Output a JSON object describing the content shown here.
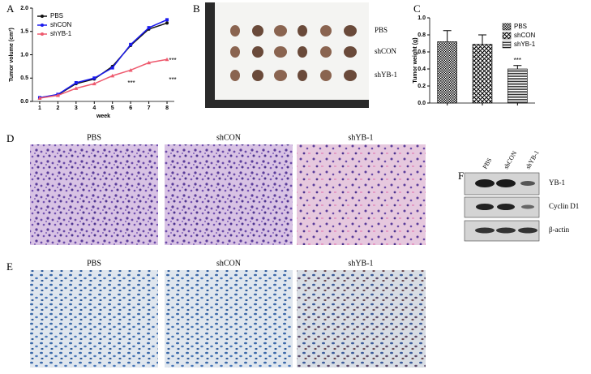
{
  "chart_data": [
    {
      "type": "line",
      "xlabel": "week",
      "ylabel": "Tumor volume (cm³)",
      "x": [
        1,
        2,
        3,
        4,
        5,
        6,
        7,
        8
      ],
      "xlim": [
        0.6,
        8.4
      ],
      "xticks": [
        1,
        2,
        3,
        4,
        5,
        6,
        7,
        8
      ],
      "ylim": [
        0,
        2
      ],
      "yticks": [
        {
          "value": 0,
          "label": "0.0"
        },
        {
          "value": 0.5,
          "label": "0.5"
        },
        {
          "value": 1,
          "label": "1.0"
        },
        {
          "value": 1.5,
          "label": "1.5"
        },
        {
          "value": 2,
          "label": "2.0"
        }
      ],
      "series": [
        {
          "name": "PBS",
          "color": "#111111",
          "values": [
            0.08,
            0.14,
            0.38,
            0.48,
            0.75,
            1.2,
            1.55,
            1.68
          ]
        },
        {
          "name": "shCON",
          "color": "#1a1aee",
          "values": [
            0.08,
            0.15,
            0.4,
            0.5,
            0.72,
            1.22,
            1.58,
            1.75
          ]
        },
        {
          "name": "shYB-1",
          "color": "#ee5a6e",
          "values": [
            0.07,
            0.13,
            0.28,
            0.38,
            0.55,
            0.67,
            0.83,
            0.9
          ]
        }
      ],
      "annotations": [
        "***",
        "***",
        "***"
      ]
    },
    {
      "type": "bar",
      "ylabel": "Tumor weight (g)",
      "categories": [
        "PBS",
        "shCON",
        "shYB-1"
      ],
      "values": [
        0.72,
        0.69,
        0.4
      ],
      "errors": [
        0.13,
        0.11,
        0.04
      ],
      "ylim": [
        0,
        1
      ],
      "yticks": [
        {
          "value": 0,
          "label": "0.0"
        },
        0.2,
        0.4,
        0.6,
        0.8,
        {
          "value": 1,
          "label": "1.0"
        }
      ],
      "annotations": [
        "***"
      ]
    }
  ],
  "panels": {
    "letters": [
      "A",
      "B",
      "C",
      "D",
      "E",
      "F"
    ],
    "b_labels": [
      "PBS",
      "shCON",
      "shYB-1"
    ],
    "d_labels": [
      "PBS",
      "shCON",
      "shYB-1"
    ],
    "e_labels": [
      "PBS",
      "shCON",
      "shYB-1"
    ],
    "f_lanes": [
      "PBS",
      "shCON",
      "shYB-1"
    ],
    "f_proteins": [
      "YB-1",
      "Cyclin D1",
      "β-actin"
    ]
  }
}
